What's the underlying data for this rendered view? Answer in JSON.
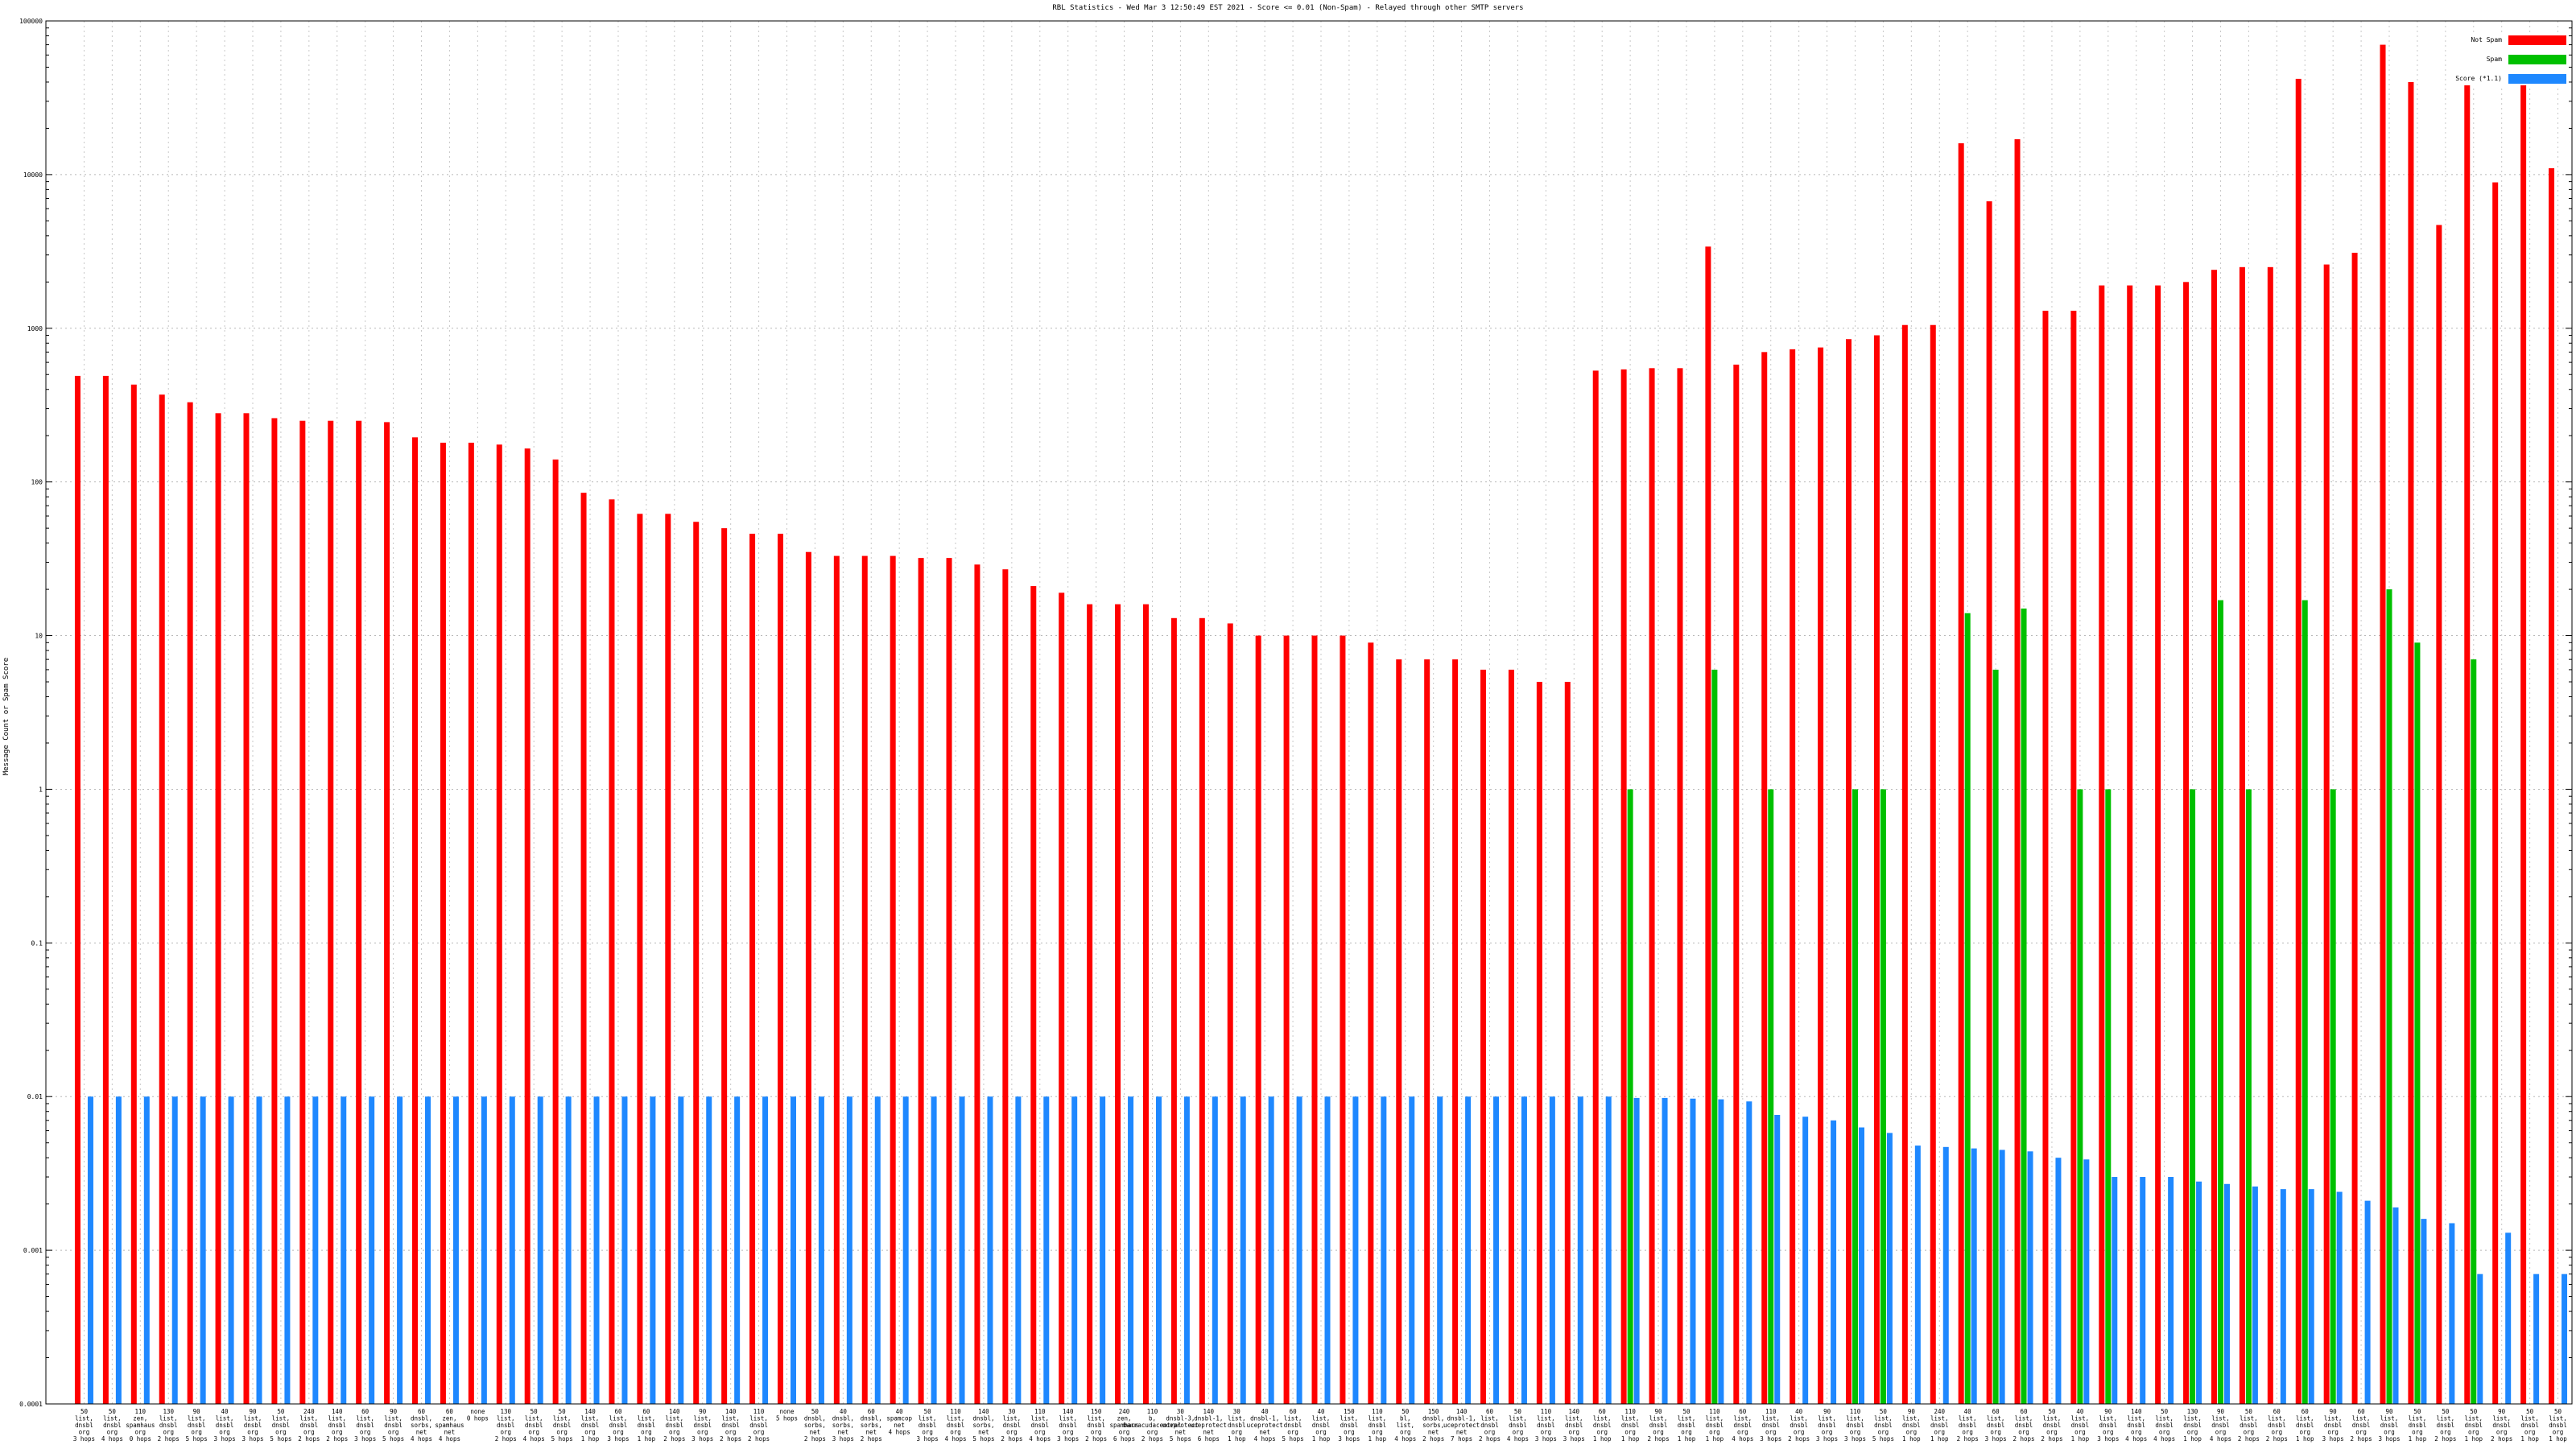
{
  "chart_data": {
    "type": "bar",
    "title": "RBL Statistics - Wed Mar  3 12:50:49 EST 2021 - Score <= 0.01 (Non-Spam) - Relayed through other SMTP servers",
    "ylabel": "Message Count or Spam Score",
    "xlabel": "",
    "yscale": "log",
    "ylim": [
      0.0001,
      100000
    ],
    "yticks": [
      "0.0001",
      "0.001",
      "0.01",
      "0.1",
      "1",
      "10",
      "100",
      "1000",
      "10000",
      "100000"
    ],
    "grid": true,
    "legend_position": "top-right",
    "colors": {
      "not_spam": "#ff0000",
      "spam": "#00c000",
      "score": "#1e88ff"
    },
    "series": [
      {
        "name": "Not Spam",
        "key": "not_spam"
      },
      {
        "name": "Spam",
        "key": "spam"
      },
      {
        "name": "Score (*1.1)",
        "key": "score"
      }
    ],
    "categories": [
      [
        "50",
        "list,",
        "dnsbl",
        "org",
        "3 hops"
      ],
      [
        "50",
        "list,",
        "dnsbl",
        "org",
        "4 hops"
      ],
      [
        "110",
        "zen,",
        "spamhaus",
        "org",
        "0 hops"
      ],
      [
        "130",
        "list,",
        "dnsbl",
        "org",
        "2 hops"
      ],
      [
        "90",
        "list,",
        "dnsbl",
        "org",
        "5 hops"
      ],
      [
        "40",
        "list,",
        "dnsbl",
        "org",
        "3 hops"
      ],
      [
        "90",
        "list,",
        "dnsbl",
        "org",
        "3 hops"
      ],
      [
        "50",
        "list,",
        "dnsbl",
        "org",
        "5 hops"
      ],
      [
        "240",
        "list,",
        "dnsbl",
        "org",
        "2 hops"
      ],
      [
        "140",
        "list,",
        "dnsbl",
        "org",
        "2 hops"
      ],
      [
        "60",
        "list,",
        "dnsbl",
        "org",
        "3 hops"
      ],
      [
        "90",
        "list,",
        "dnsbl",
        "org",
        "5 hops"
      ],
      [
        "60",
        "dnsbl,",
        "sorbs,",
        "net",
        "4 hops"
      ],
      [
        "60",
        "zen,",
        "spamhaus",
        "net",
        "4 hops"
      ],
      [
        "none",
        "0 hops",
        "",
        "",
        ""
      ],
      [
        "130",
        "list,",
        "dnsbl",
        "org",
        "2 hops"
      ],
      [
        "50",
        "list,",
        "dnsbl",
        "org",
        "4 hops"
      ],
      [
        "50",
        "list,",
        "dnsbl",
        "org",
        "5 hops"
      ],
      [
        "140",
        "list,",
        "dnsbl",
        "org",
        "1 hop"
      ],
      [
        "60",
        "list,",
        "dnsbl",
        "org",
        "3 hops"
      ],
      [
        "60",
        "list,",
        "dnsbl",
        "org",
        "1 hop"
      ],
      [
        "140",
        "list,",
        "dnsbl",
        "org",
        "2 hops"
      ],
      [
        "90",
        "list,",
        "dnsbl",
        "org",
        "3 hops"
      ],
      [
        "140",
        "list,",
        "dnsbl",
        "org",
        "2 hops"
      ],
      [
        "110",
        "list,",
        "dnsbl",
        "org",
        "2 hops"
      ],
      [
        "none",
        "5 hops",
        "",
        "",
        ""
      ],
      [
        "50",
        "dnsbl,",
        "sorbs,",
        "net",
        "2 hops"
      ],
      [
        "40",
        "dnsbl,",
        "sorbs,",
        "net",
        "3 hops"
      ],
      [
        "60",
        "dnsbl,",
        "sorbs,",
        "net",
        "2 hops"
      ],
      [
        "40",
        "spamcop",
        "net",
        "4 hops",
        ""
      ],
      [
        "50",
        "list,",
        "dnsbl",
        "org",
        "3 hops"
      ],
      [
        "110",
        "list,",
        "dnsbl",
        "org",
        "4 hops"
      ],
      [
        "140",
        "dnsbl,",
        "sorbs,",
        "net",
        "5 hops"
      ],
      [
        "30",
        "list,",
        "dnsbl",
        "org",
        "2 hops"
      ],
      [
        "110",
        "list,",
        "dnsbl",
        "org",
        "4 hops"
      ],
      [
        "140",
        "list,",
        "dnsbl",
        "org",
        "3 hops"
      ],
      [
        "150",
        "list,",
        "dnsbl",
        "org",
        "2 hops"
      ],
      [
        "240",
        "zen,",
        "spamhaus",
        "org",
        "6 hops"
      ],
      [
        "110",
        "b,",
        "barracudacentral",
        "org",
        "2 hops"
      ],
      [
        "30",
        "dnsbl-3,",
        "uceprotect",
        "net",
        "5 hops"
      ],
      [
        "140",
        "dnsbl-1,",
        "uceprotect",
        "net",
        "6 hops"
      ],
      [
        "30",
        "list,",
        "dnsbl",
        "org",
        "1 hop"
      ],
      [
        "40",
        "dnsbl-1,",
        "uceprotect",
        "net",
        "4 hops"
      ],
      [
        "60",
        "list,",
        "dnsbl",
        "org",
        "5 hops"
      ],
      [
        "40",
        "list,",
        "dnsbl",
        "org",
        "1 hop"
      ],
      [
        "150",
        "list,",
        "dnsbl",
        "org",
        "3 hops"
      ],
      [
        "110",
        "list,",
        "dnsbl",
        "org",
        "1 hop"
      ],
      [
        "50",
        "bl,",
        "list,",
        "org",
        "4 hops"
      ],
      [
        "150",
        "dnsbl,",
        "sorbs,",
        "net",
        "2 hops"
      ],
      [
        "140",
        "dnsbl-1,",
        "uceprotect",
        "net",
        "7 hops"
      ],
      [
        "60",
        "list,",
        "dnsbl",
        "org",
        "2 hops"
      ],
      [
        "50",
        "list,",
        "dnsbl",
        "org",
        "4 hops"
      ],
      [
        "110",
        "list,",
        "dnsbl",
        "org",
        "3 hops"
      ],
      [
        "140",
        "list,",
        "dnsbl",
        "org",
        "3 hops"
      ],
      [
        "60",
        "list,",
        "dnsbl",
        "org",
        "1 hop"
      ],
      [
        "110",
        "list,",
        "dnsbl",
        "org",
        "1 hop"
      ],
      [
        "90",
        "list,",
        "dnsbl",
        "org",
        "2 hops"
      ],
      [
        "50",
        "list,",
        "dnsbl",
        "org",
        "1 hop"
      ],
      [
        "110",
        "list,",
        "dnsbl",
        "org",
        "1 hop"
      ],
      [
        "60",
        "list,",
        "dnsbl",
        "org",
        "4 hops"
      ],
      [
        "110",
        "list,",
        "dnsbl",
        "org",
        "3 hops"
      ],
      [
        "40",
        "list,",
        "dnsbl",
        "org",
        "2 hops"
      ],
      [
        "90",
        "list,",
        "dnsbl",
        "org",
        "3 hops"
      ],
      [
        "110",
        "list,",
        "dnsbl",
        "org",
        "3 hops"
      ],
      [
        "50",
        "list,",
        "dnsbl",
        "org",
        "5 hops"
      ],
      [
        "90",
        "list,",
        "dnsbl",
        "org",
        "1 hop"
      ],
      [
        "240",
        "list,",
        "dnsbl",
        "org",
        "1 hop"
      ],
      [
        "40",
        "list,",
        "dnsbl",
        "org",
        "2 hops"
      ],
      [
        "60",
        "list,",
        "dnsbl",
        "org",
        "3 hops"
      ],
      [
        "60",
        "list,",
        "dnsbl",
        "org",
        "2 hops"
      ],
      [
        "50",
        "list,",
        "dnsbl",
        "org",
        "2 hops"
      ],
      [
        "40",
        "list,",
        "dnsbl",
        "org",
        "1 hop"
      ],
      [
        "90",
        "list,",
        "dnsbl",
        "org",
        "3 hops"
      ],
      [
        "140",
        "list,",
        "dnsbl",
        "org",
        "4 hops"
      ],
      [
        "50",
        "list,",
        "dnsbl",
        "org",
        "4 hops"
      ],
      [
        "130",
        "list,",
        "dnsbl",
        "org",
        "1 hop"
      ],
      [
        "90",
        "list,",
        "dnsbl",
        "org",
        "4 hops"
      ],
      [
        "50",
        "list,",
        "dnsbl",
        "org",
        "2 hops"
      ],
      [
        "60",
        "list,",
        "dnsbl",
        "org",
        "2 hops"
      ],
      [
        "60",
        "list,",
        "dnsbl",
        "org",
        "1 hop"
      ],
      [
        "90",
        "list,",
        "dnsbl",
        "org",
        "3 hops"
      ],
      [
        "60",
        "list,",
        "dnsbl",
        "org",
        "2 hops"
      ],
      [
        "90",
        "list,",
        "dnsbl",
        "org",
        "3 hops"
      ],
      [
        "50",
        "list,",
        "dnsbl",
        "org",
        "1 hop"
      ],
      [
        "50",
        "list,",
        "dnsbl",
        "org",
        "2 hops"
      ],
      [
        "50",
        "list,",
        "dnsbl",
        "org",
        "1 hop"
      ],
      [
        "90",
        "list,",
        "dnsbl",
        "org",
        "2 hops"
      ],
      [
        "50",
        "list,",
        "dnsbl",
        "org",
        "1 hop"
      ],
      [
        "50",
        "list,",
        "dnsbl",
        "org",
        "1 hop"
      ]
    ],
    "values_not_spam": [
      490,
      490,
      430,
      370,
      330,
      280,
      280,
      260,
      250,
      250,
      250,
      245,
      195,
      180,
      180,
      175,
      165,
      140,
      85,
      77,
      62,
      62,
      55,
      50,
      46,
      46,
      35,
      33,
      33,
      33,
      32,
      32,
      29,
      27,
      21,
      19,
      16,
      16,
      16,
      13,
      13,
      12,
      10,
      10,
      10,
      10,
      9,
      7,
      7,
      7,
      6,
      6,
      5,
      5,
      530,
      540,
      550,
      550,
      3400,
      580,
      700,
      730,
      750,
      850,
      900,
      1050,
      1050,
      16000,
      6700,
      17000,
      1300,
      1300,
      1900,
      1900,
      1900,
      2000,
      2400,
      2500,
      2500,
      42000,
      2600,
      3100,
      70000,
      40000,
      4700,
      55000,
      8900,
      50000,
      11000
    ],
    "values_spam": [
      null,
      null,
      null,
      null,
      null,
      null,
      null,
      null,
      null,
      null,
      null,
      null,
      null,
      null,
      null,
      null,
      null,
      null,
      null,
      null,
      null,
      null,
      null,
      null,
      null,
      null,
      null,
      null,
      null,
      null,
      null,
      null,
      null,
      null,
      null,
      null,
      null,
      null,
      null,
      null,
      null,
      null,
      null,
      null,
      null,
      null,
      null,
      null,
      null,
      null,
      null,
      null,
      null,
      null,
      null,
      1,
      null,
      null,
      6,
      null,
      1,
      null,
      null,
      1,
      1,
      null,
      null,
      14,
      6,
      15,
      null,
      1,
      1,
      null,
      null,
      1,
      17,
      1,
      null,
      17,
      1,
      null,
      20,
      9,
      null,
      7,
      null,
      null,
      null
    ],
    "values_score": [
      0.01,
      0.01,
      0.01,
      0.01,
      0.01,
      0.01,
      0.01,
      0.01,
      0.01,
      0.01,
      0.01,
      0.01,
      0.01,
      0.01,
      0.01,
      0.01,
      0.01,
      0.01,
      0.01,
      0.01,
      0.01,
      0.01,
      0.01,
      0.01,
      0.01,
      0.01,
      0.01,
      0.01,
      0.01,
      0.01,
      0.01,
      0.01,
      0.01,
      0.01,
      0.01,
      0.01,
      0.01,
      0.01,
      0.01,
      0.01,
      0.01,
      0.01,
      0.01,
      0.01,
      0.01,
      0.01,
      0.01,
      0.01,
      0.01,
      0.01,
      0.01,
      0.01,
      0.01,
      0.01,
      0.01,
      0.0098,
      0.0098,
      0.0097,
      0.0096,
      0.0093,
      0.0076,
      0.0074,
      0.007,
      0.0063,
      0.0058,
      0.0048,
      0.0047,
      0.0046,
      0.0045,
      0.0044,
      0.004,
      0.0039,
      0.003,
      0.003,
      0.003,
      0.0028,
      0.0027,
      0.0026,
      0.0025,
      0.0025,
      0.0024,
      0.0021,
      0.0019,
      0.0016,
      0.0015,
      0.0007,
      0.0013,
      0.0007,
      0.0007
    ]
  }
}
